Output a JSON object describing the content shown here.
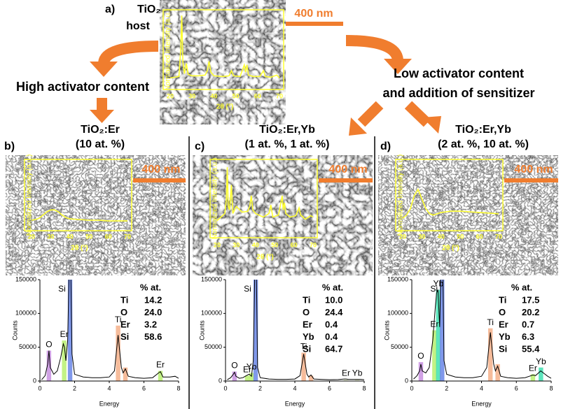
{
  "panels": [
    {
      "label": "a)",
      "title": "TiO₂",
      "subtitle": "host",
      "scale": "400 nm"
    },
    {
      "label": "b)",
      "title": "TiO₂:Er",
      "subtitle": "(10 at. %)",
      "scale": "400 nm",
      "composition": {
        "title": "% at.",
        "rows": [
          [
            "Ti",
            "14.2"
          ],
          [
            "O",
            "24.0"
          ],
          [
            "Er",
            "3.2"
          ],
          [
            "Si",
            "58.6"
          ]
        ]
      }
    },
    {
      "label": "c)",
      "title": "TiO₂:Er,Yb",
      "subtitle": "(1 at. %, 1 at. %)",
      "scale": "400 nm",
      "composition": {
        "title": "% at.",
        "rows": [
          [
            "Ti",
            "10.0"
          ],
          [
            "O",
            "24.4"
          ],
          [
            "Er",
            "0.4"
          ],
          [
            "Yb",
            "0.4"
          ],
          [
            "Si",
            "64.7"
          ]
        ]
      }
    },
    {
      "label": "d)",
      "title": "TiO₂:Er,Yb",
      "subtitle": "(2 at. %, 10 at. %)",
      "scale": "400 nm",
      "composition": {
        "title": "% at.",
        "rows": [
          [
            "Ti",
            "17.5"
          ],
          [
            "O",
            "20.2"
          ],
          [
            "Er",
            "0.7"
          ],
          [
            "Yb",
            "6.3"
          ],
          [
            "Si",
            "55.4"
          ]
        ]
      }
    }
  ],
  "captions": [
    "High activator content",
    "Low activator content",
    "and addition of sensitizer"
  ],
  "chart_data": [
    {
      "type": "line",
      "xlabel": "2θ (°)",
      "ylabel": "Normalized Intensity (a.u.)",
      "color": "#ffff33",
      "x": [
        20,
        22,
        24,
        24.8,
        25.3,
        25.8,
        26.5,
        27.4,
        28.2,
        30,
        33,
        36,
        37,
        37.8,
        38.6,
        40,
        44,
        47,
        48,
        49,
        52,
        53.9,
        54.5,
        55.1,
        55.8,
        58,
        61,
        62.7,
        63.5,
        66,
        68.8,
        70
      ],
      "values": [
        0.12,
        0.13,
        0.14,
        0.5,
        0.98,
        0.35,
        0.18,
        0.32,
        0.17,
        0.15,
        0.15,
        0.16,
        0.22,
        0.35,
        0.2,
        0.15,
        0.14,
        0.15,
        0.22,
        0.15,
        0.14,
        0.3,
        0.2,
        0.3,
        0.16,
        0.14,
        0.14,
        0.22,
        0.14,
        0.13,
        0.16,
        0.12
      ],
      "xlim": [
        20,
        70
      ],
      "xticks": [
        20,
        30,
        40,
        50,
        60,
        70
      ],
      "ylim": [
        0,
        1
      ]
    },
    {
      "type": "line",
      "xlabel": "2θ (°)",
      "ylabel": "Normalized Intensity (a.u.)",
      "color": "#ffff33",
      "x": [
        20,
        22,
        24,
        26,
        28,
        30,
        32,
        34,
        36,
        38,
        40,
        45,
        50,
        55,
        60,
        65,
        70
      ],
      "values": [
        0.12,
        0.13,
        0.15,
        0.2,
        0.25,
        0.28,
        0.28,
        0.25,
        0.2,
        0.16,
        0.14,
        0.13,
        0.12,
        0.12,
        0.11,
        0.11,
        0.11
      ],
      "xlim": [
        20,
        70
      ],
      "xticks": [
        20,
        30,
        40,
        50,
        60,
        70
      ],
      "ylim": [
        0,
        1
      ]
    },
    {
      "type": "line",
      "xlabel": "2θ (°)",
      "ylabel": "Normalized Intensity (a.u.)",
      "color": "#ffff33",
      "x": [
        20,
        22,
        24,
        24.8,
        25.3,
        25.8,
        26.5,
        27.4,
        28.2,
        30,
        33,
        36,
        37,
        37.8,
        38.6,
        40,
        44,
        47,
        48,
        49,
        52,
        53.9,
        54.5,
        55.1,
        55.8,
        58,
        61,
        62.7,
        63.5,
        66,
        68.8,
        70
      ],
      "values": [
        0.2,
        0.25,
        0.3,
        0.5,
        0.95,
        0.4,
        0.35,
        0.7,
        0.3,
        0.4,
        0.32,
        0.33,
        0.4,
        0.55,
        0.35,
        0.3,
        0.25,
        0.3,
        0.42,
        0.25,
        0.28,
        0.55,
        0.35,
        0.45,
        0.3,
        0.25,
        0.27,
        0.38,
        0.28,
        0.22,
        0.27,
        0.25
      ],
      "xlim": [
        20,
        70
      ],
      "xticks": [
        20,
        30,
        40,
        50,
        60,
        70
      ],
      "ylim": [
        0,
        1
      ]
    },
    {
      "type": "line",
      "xlabel": "2θ (°)",
      "ylabel": "Normalized Intensity (a.u.)",
      "color": "#ffff33",
      "x": [
        20,
        22,
        24,
        26,
        28,
        30,
        32,
        34,
        36,
        38,
        40,
        45,
        50,
        55,
        60,
        65,
        70
      ],
      "values": [
        0.15,
        0.2,
        0.3,
        0.5,
        0.6,
        0.45,
        0.3,
        0.22,
        0.2,
        0.22,
        0.24,
        0.26,
        0.26,
        0.25,
        0.24,
        0.23,
        0.22
      ],
      "xlim": [
        20,
        70
      ],
      "xticks": [
        20,
        30,
        40,
        50,
        60,
        70
      ],
      "ylim": [
        0,
        1
      ]
    },
    {
      "type": "line",
      "xlabel": "Energy",
      "ylabel": "Counts",
      "color": "#000000",
      "x": [
        0.1,
        0.3,
        0.45,
        0.52,
        0.6,
        0.8,
        1.0,
        1.2,
        1.35,
        1.42,
        1.5,
        1.6,
        1.74,
        1.85,
        2.0,
        2.5,
        3.0,
        3.5,
        4.0,
        4.3,
        4.51,
        4.7,
        4.8,
        4.93,
        5.1,
        5.5,
        6.0,
        6.5,
        6.85,
        6.95,
        7.1,
        7.5,
        7.8,
        8.0
      ],
      "values": [
        2000,
        8000,
        25000,
        45000,
        20000,
        10000,
        15000,
        35000,
        55000,
        50000,
        30000,
        60000,
        230000,
        40000,
        10000,
        6000,
        5000,
        5000,
        6000,
        15000,
        68000,
        20000,
        12000,
        18000,
        7000,
        5000,
        4000,
        5000,
        12000,
        14000,
        6000,
        6000,
        7000,
        4000
      ],
      "xlim": [
        0,
        8
      ],
      "xticks": [
        0,
        2,
        4,
        6,
        8
      ],
      "ylim": [
        0,
        150000
      ],
      "yticks": [
        0,
        50000,
        100000,
        150000
      ],
      "peaks": [
        {
          "label": "O",
          "energy": 0.52,
          "height": 45000,
          "color": "#c890e0"
        },
        {
          "label": "Er",
          "energy": 1.4,
          "height": 60000,
          "color": "#b8f070"
        },
        {
          "label": "Si",
          "energy": 1.74,
          "height": 150000,
          "color": "#6a86e6"
        },
        {
          "label": "Ti",
          "energy": 4.51,
          "height": 82000,
          "color": "#f4b08a"
        },
        {
          "energy": 4.93,
          "height": 20000,
          "color": "#f4b08a"
        },
        {
          "label": "Er",
          "energy": 6.95,
          "height": 15000,
          "color": "#b8f070"
        }
      ]
    },
    {
      "type": "line",
      "xlabel": "Energy",
      "ylabel": "Counts",
      "color": "#000000",
      "x": [
        0.1,
        0.3,
        0.45,
        0.52,
        0.6,
        0.8,
        1.0,
        1.2,
        1.35,
        1.42,
        1.5,
        1.6,
        1.74,
        1.85,
        2.0,
        2.5,
        3.0,
        3.5,
        4.0,
        4.3,
        4.51,
        4.7,
        4.8,
        4.93,
        5.1,
        5.5,
        6.0,
        6.5,
        6.85,
        6.95,
        7.1,
        7.5,
        7.8,
        8.0
      ],
      "values": [
        2000,
        5000,
        10000,
        13000,
        7000,
        4000,
        5000,
        8000,
        10000,
        9000,
        7000,
        30000,
        240000,
        20000,
        5000,
        3000,
        2500,
        2500,
        3000,
        8000,
        40000,
        10000,
        6000,
        9000,
        3000,
        2500,
        2000,
        2200,
        3000,
        3000,
        2500,
        2500,
        2500,
        2000
      ],
      "xlim": [
        0,
        8
      ],
      "xticks": [
        0,
        2,
        4,
        6,
        8
      ],
      "ylim": [
        0,
        150000
      ],
      "yticks": [
        0,
        50000,
        100000,
        150000
      ],
      "peaks": [
        {
          "label": "O",
          "energy": 0.52,
          "height": 14000,
          "color": "#c890e0"
        },
        {
          "label": "Er",
          "energy": 1.25,
          "height": 8000,
          "color": "#b8f070"
        },
        {
          "label": "Yb",
          "energy": 1.5,
          "height": 12000,
          "color": "#b8f070"
        },
        {
          "label": "Si",
          "energy": 1.74,
          "height": 150000,
          "color": "#6a86e6"
        },
        {
          "label": "Ti",
          "energy": 4.51,
          "height": 42000,
          "color": "#f4b08a"
        },
        {
          "energy": 4.93,
          "height": 8000,
          "color": "#f4b08a"
        },
        {
          "label": "Er",
          "energy": 6.95,
          "height": 3000,
          "color": "#e8f0d0"
        },
        {
          "label": "Yb",
          "energy": 7.6,
          "height": 3000,
          "color": "#e8f0d0"
        }
      ]
    },
    {
      "type": "line",
      "xlabel": "Energy",
      "ylabel": "Counts",
      "color": "#000000",
      "x": [
        0.1,
        0.3,
        0.45,
        0.52,
        0.6,
        0.8,
        1.0,
        1.2,
        1.35,
        1.42,
        1.5,
        1.6,
        1.74,
        1.85,
        2.0,
        2.5,
        3.0,
        3.5,
        4.0,
        4.3,
        4.51,
        4.7,
        4.8,
        4.93,
        5.1,
        5.5,
        6.0,
        6.5,
        6.85,
        6.95,
        7.1,
        7.4,
        7.8,
        8.0
      ],
      "values": [
        3000,
        8000,
        15000,
        25000,
        15000,
        12000,
        20000,
        60000,
        110000,
        130000,
        135000,
        80000,
        240000,
        30000,
        10000,
        6000,
        5000,
        5000,
        7000,
        20000,
        72000,
        25000,
        15000,
        22000,
        7000,
        5000,
        4000,
        5000,
        8000,
        9000,
        8000,
        15000,
        7000,
        4000
      ],
      "xlim": [
        0,
        8
      ],
      "xticks": [
        0,
        2,
        4,
        6,
        8
      ],
      "ylim": [
        0,
        150000
      ],
      "yticks": [
        0,
        50000,
        100000,
        150000
      ],
      "peaks": [
        {
          "label": "O",
          "energy": 0.52,
          "height": 28000,
          "color": "#c890e0"
        },
        {
          "label": "Er",
          "energy": 1.3,
          "height": 75000,
          "color": "#b8f070"
        },
        {
          "label": "Yb",
          "energy": 1.52,
          "height": 135000,
          "color": "#40e0b0"
        },
        {
          "label": "Si",
          "energy": 1.74,
          "height": 150000,
          "color": "#6a86e6"
        },
        {
          "label": "Ti",
          "energy": 4.51,
          "height": 78000,
          "color": "#f4b08a"
        },
        {
          "energy": 4.93,
          "height": 25000,
          "color": "#f4b08a"
        },
        {
          "label": "Er",
          "energy": 6.95,
          "height": 10000,
          "color": "#b8f070"
        },
        {
          "label": "Yb",
          "energy": 7.41,
          "height": 20000,
          "color": "#40e0b0"
        }
      ]
    }
  ]
}
